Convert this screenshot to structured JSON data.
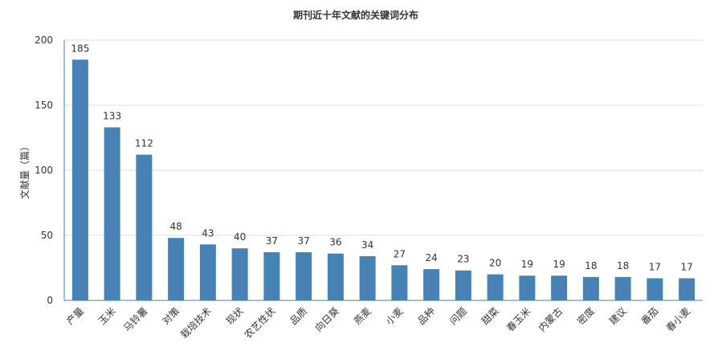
{
  "chart_data": {
    "type": "bar",
    "title": "期刊近十年文献的关键词分布",
    "xlabel": "",
    "ylabel": "文献量（篇）",
    "ylim": [
      0,
      200
    ],
    "yticks": [
      0,
      50,
      100,
      150,
      200
    ],
    "grid": true,
    "legend": "none",
    "bar_color": "#4682b4",
    "categories": [
      "产量",
      "玉米",
      "马铃薯",
      "对策",
      "栽培技术",
      "现状",
      "农艺性状",
      "品质",
      "向日葵",
      "燕麦",
      "小麦",
      "品种",
      "问题",
      "甜菜",
      "春玉米",
      "内蒙古",
      "密度",
      "建议",
      "番茄",
      "春小麦"
    ],
    "values": [
      185,
      133,
      112,
      48,
      43,
      40,
      37,
      37,
      36,
      34,
      27,
      24,
      23,
      20,
      19,
      19,
      18,
      18,
      17,
      17
    ]
  }
}
